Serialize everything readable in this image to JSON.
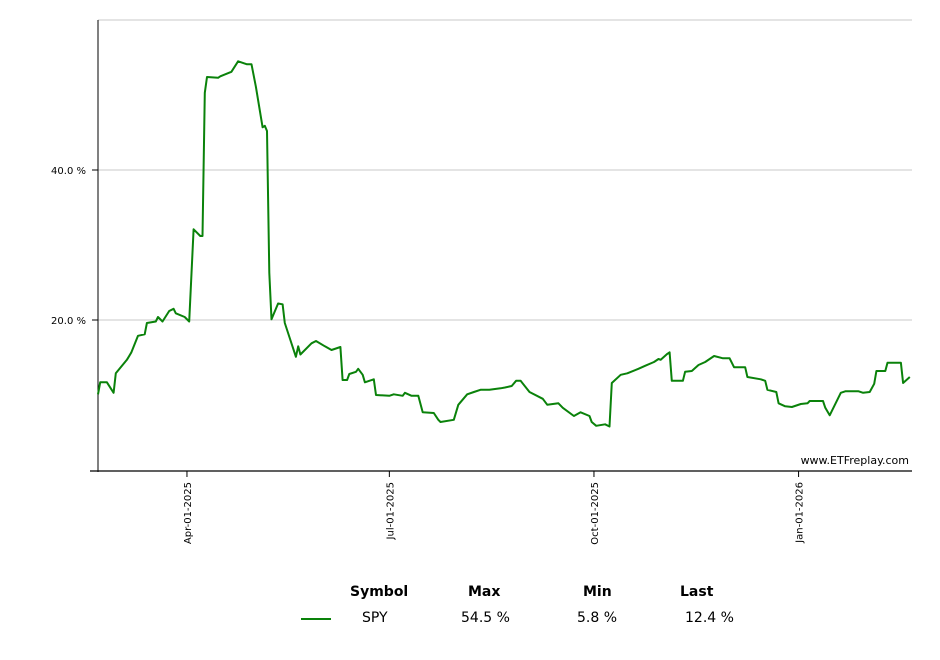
{
  "chart_data": {
    "type": "line",
    "title": "",
    "xlabel": "",
    "ylabel": "",
    "xlim": [
      "2025-02-20",
      "2026-02-21"
    ],
    "ylim": [
      0,
      60
    ],
    "grid": true,
    "y_ticks": [
      {
        "value": 20,
        "label": "20.0 %"
      },
      {
        "value": 40,
        "label": "40.0 %"
      }
    ],
    "x_ticks": [
      {
        "date": "2025-04-01",
        "label": "Apr-01-2025"
      },
      {
        "date": "2025-07-01",
        "label": "Jul-01-2025"
      },
      {
        "date": "2025-10-01",
        "label": "Oct-01-2025"
      },
      {
        "date": "2026-01-01",
        "label": "Jan-01-2026"
      }
    ],
    "watermark": "www.ETFreplay.com",
    "series": [
      {
        "name": "SPY",
        "color": "#0a820a",
        "points": [
          [
            "2025-02-20",
            10.1
          ],
          [
            "2025-02-21",
            11.7
          ],
          [
            "2025-02-24",
            11.7
          ],
          [
            "2025-02-27",
            10.3
          ],
          [
            "2025-02-28",
            12.9
          ],
          [
            "2025-03-05",
            14.7
          ],
          [
            "2025-03-07",
            15.7
          ],
          [
            "2025-03-10",
            17.9
          ],
          [
            "2025-03-13",
            18.1
          ],
          [
            "2025-03-14",
            19.6
          ],
          [
            "2025-03-18",
            19.8
          ],
          [
            "2025-03-19",
            20.4
          ],
          [
            "2025-03-21",
            19.8
          ],
          [
            "2025-03-24",
            21.2
          ],
          [
            "2025-03-26",
            21.5
          ],
          [
            "2025-03-27",
            20.9
          ],
          [
            "2025-03-31",
            20.4
          ],
          [
            "2025-04-02",
            19.8
          ],
          [
            "2025-04-04",
            32.1
          ],
          [
            "2025-04-07",
            31.2
          ],
          [
            "2025-04-08",
            31.2
          ],
          [
            "2025-04-09",
            50.3
          ],
          [
            "2025-04-10",
            52.4
          ],
          [
            "2025-04-15",
            52.3
          ],
          [
            "2025-04-16",
            52.5
          ],
          [
            "2025-04-21",
            53.1
          ],
          [
            "2025-04-24",
            54.5
          ],
          [
            "2025-04-28",
            54.1
          ],
          [
            "2025-04-30",
            54.1
          ],
          [
            "2025-05-02",
            51.1
          ],
          [
            "2025-05-05",
            45.7
          ],
          [
            "2025-05-06",
            45.9
          ],
          [
            "2025-05-07",
            45.2
          ],
          [
            "2025-05-08",
            26.3
          ],
          [
            "2025-05-09",
            20.1
          ],
          [
            "2025-05-12",
            22.2
          ],
          [
            "2025-05-14",
            22.1
          ],
          [
            "2025-05-15",
            19.6
          ],
          [
            "2025-05-20",
            15.1
          ],
          [
            "2025-05-21",
            16.5
          ],
          [
            "2025-05-22",
            15.4
          ],
          [
            "2025-05-27",
            16.9
          ],
          [
            "2025-05-29",
            17.2
          ],
          [
            "2025-06-02",
            16.5
          ],
          [
            "2025-06-05",
            16.0
          ],
          [
            "2025-06-09",
            16.4
          ],
          [
            "2025-06-10",
            12.0
          ],
          [
            "2025-06-12",
            12.0
          ],
          [
            "2025-06-13",
            12.8
          ],
          [
            "2025-06-16",
            13.1
          ],
          [
            "2025-06-17",
            13.5
          ],
          [
            "2025-06-19",
            12.7
          ],
          [
            "2025-06-20",
            11.7
          ],
          [
            "2025-06-24",
            12.1
          ],
          [
            "2025-06-25",
            10.0
          ],
          [
            "2025-07-01",
            9.9
          ],
          [
            "2025-07-03",
            10.1
          ],
          [
            "2025-07-07",
            9.9
          ],
          [
            "2025-07-08",
            10.3
          ],
          [
            "2025-07-11",
            9.9
          ],
          [
            "2025-07-14",
            9.9
          ],
          [
            "2025-07-16",
            7.7
          ],
          [
            "2025-07-21",
            7.6
          ],
          [
            "2025-07-23",
            6.7
          ],
          [
            "2025-07-24",
            6.4
          ],
          [
            "2025-07-30",
            6.7
          ],
          [
            "2025-08-01",
            8.7
          ],
          [
            "2025-08-05",
            10.1
          ],
          [
            "2025-08-08",
            10.4
          ],
          [
            "2025-08-11",
            10.7
          ],
          [
            "2025-08-15",
            10.7
          ],
          [
            "2025-08-20",
            10.9
          ],
          [
            "2025-08-22",
            11.0
          ],
          [
            "2025-08-25",
            11.2
          ],
          [
            "2025-08-27",
            11.9
          ],
          [
            "2025-08-29",
            11.9
          ],
          [
            "2025-09-02",
            10.4
          ],
          [
            "2025-09-08",
            9.5
          ],
          [
            "2025-09-10",
            8.7
          ],
          [
            "2025-09-15",
            8.9
          ],
          [
            "2025-09-17",
            8.3
          ],
          [
            "2025-09-22",
            7.2
          ],
          [
            "2025-09-25",
            7.7
          ],
          [
            "2025-09-29",
            7.2
          ],
          [
            "2025-09-30",
            6.4
          ],
          [
            "2025-10-02",
            5.9
          ],
          [
            "2025-10-06",
            6.1
          ],
          [
            "2025-10-08",
            5.8
          ],
          [
            "2025-10-09",
            11.6
          ],
          [
            "2025-10-13",
            12.7
          ],
          [
            "2025-10-16",
            12.9
          ],
          [
            "2025-10-21",
            13.5
          ],
          [
            "2025-10-24",
            13.9
          ],
          [
            "2025-10-28",
            14.4
          ],
          [
            "2025-10-30",
            14.8
          ],
          [
            "2025-10-31",
            14.7
          ],
          [
            "2025-11-03",
            15.5
          ],
          [
            "2025-11-04",
            15.7
          ],
          [
            "2025-11-05",
            11.9
          ],
          [
            "2025-11-10",
            11.9
          ],
          [
            "2025-11-11",
            13.1
          ],
          [
            "2025-11-14",
            13.2
          ],
          [
            "2025-11-17",
            14.0
          ],
          [
            "2025-11-20",
            14.4
          ],
          [
            "2025-11-24",
            15.2
          ],
          [
            "2025-11-28",
            14.9
          ],
          [
            "2025-12-01",
            14.9
          ],
          [
            "2025-12-03",
            13.7
          ],
          [
            "2025-12-08",
            13.7
          ],
          [
            "2025-12-09",
            12.4
          ],
          [
            "2025-12-15",
            12.1
          ],
          [
            "2025-12-17",
            11.9
          ],
          [
            "2025-12-18",
            10.7
          ],
          [
            "2025-12-22",
            10.4
          ],
          [
            "2025-12-23",
            8.9
          ],
          [
            "2025-12-26",
            8.5
          ],
          [
            "2025-12-29",
            8.4
          ],
          [
            "2026-01-02",
            8.8
          ],
          [
            "2026-01-05",
            8.9
          ],
          [
            "2026-01-06",
            9.2
          ],
          [
            "2026-01-12",
            9.2
          ],
          [
            "2026-01-13",
            8.3
          ],
          [
            "2026-01-15",
            7.3
          ],
          [
            "2026-01-20",
            10.3
          ],
          [
            "2026-01-22",
            10.5
          ],
          [
            "2026-01-28",
            10.5
          ],
          [
            "2026-01-30",
            10.3
          ],
          [
            "2026-02-02",
            10.4
          ],
          [
            "2026-02-04",
            11.5
          ],
          [
            "2026-02-05",
            13.2
          ],
          [
            "2026-02-09",
            13.2
          ],
          [
            "2026-02-10",
            14.3
          ],
          [
            "2026-02-16",
            14.3
          ],
          [
            "2026-02-17",
            11.6
          ],
          [
            "2026-02-20",
            12.4
          ]
        ]
      }
    ]
  },
  "legend": {
    "headers": {
      "symbol": "Symbol",
      "max": "Max",
      "min": "Min",
      "last": "Last"
    },
    "rows": [
      {
        "symbol": "SPY",
        "max": "54.5 %",
        "min": "5.8 %",
        "last": "12.4 %",
        "color": "#0a820a"
      }
    ]
  }
}
